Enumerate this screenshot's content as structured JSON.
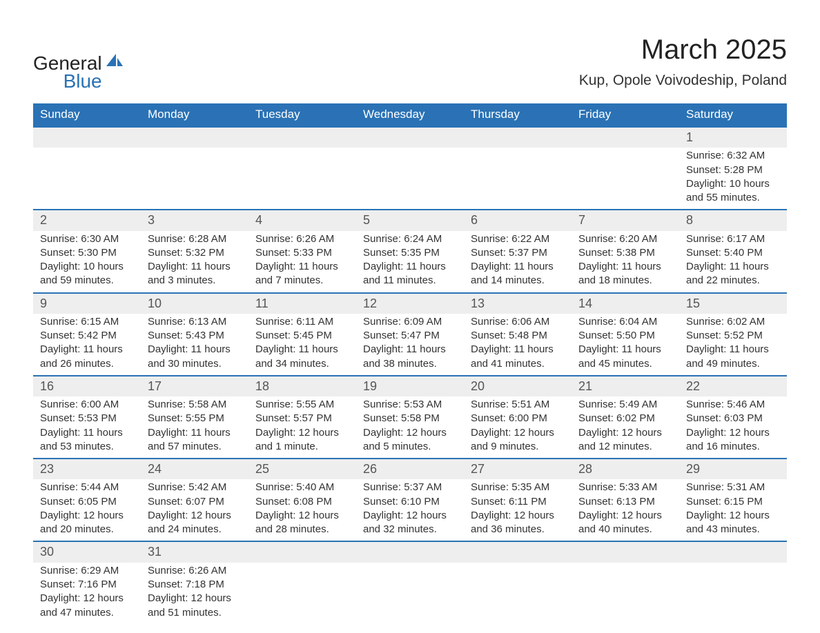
{
  "logo": {
    "text1": "General",
    "text2": "Blue"
  },
  "title": "March 2025",
  "location": "Kup, Opole Voivodeship, Poland",
  "colors": {
    "header_bg": "#2a72b5",
    "header_text": "#ffffff",
    "daynum_bg": "#eeeeee",
    "row_divider": "#2a72b5",
    "text": "#333333"
  },
  "weekdays": [
    "Sunday",
    "Monday",
    "Tuesday",
    "Wednesday",
    "Thursday",
    "Friday",
    "Saturday"
  ],
  "weeks": [
    [
      null,
      null,
      null,
      null,
      null,
      null,
      {
        "n": "1",
        "sr": "Sunrise: 6:32 AM",
        "ss": "Sunset: 5:28 PM",
        "d1": "Daylight: 10 hours",
        "d2": "and 55 minutes."
      }
    ],
    [
      {
        "n": "2",
        "sr": "Sunrise: 6:30 AM",
        "ss": "Sunset: 5:30 PM",
        "d1": "Daylight: 10 hours",
        "d2": "and 59 minutes."
      },
      {
        "n": "3",
        "sr": "Sunrise: 6:28 AM",
        "ss": "Sunset: 5:32 PM",
        "d1": "Daylight: 11 hours",
        "d2": "and 3 minutes."
      },
      {
        "n": "4",
        "sr": "Sunrise: 6:26 AM",
        "ss": "Sunset: 5:33 PM",
        "d1": "Daylight: 11 hours",
        "d2": "and 7 minutes."
      },
      {
        "n": "5",
        "sr": "Sunrise: 6:24 AM",
        "ss": "Sunset: 5:35 PM",
        "d1": "Daylight: 11 hours",
        "d2": "and 11 minutes."
      },
      {
        "n": "6",
        "sr": "Sunrise: 6:22 AM",
        "ss": "Sunset: 5:37 PM",
        "d1": "Daylight: 11 hours",
        "d2": "and 14 minutes."
      },
      {
        "n": "7",
        "sr": "Sunrise: 6:20 AM",
        "ss": "Sunset: 5:38 PM",
        "d1": "Daylight: 11 hours",
        "d2": "and 18 minutes."
      },
      {
        "n": "8",
        "sr": "Sunrise: 6:17 AM",
        "ss": "Sunset: 5:40 PM",
        "d1": "Daylight: 11 hours",
        "d2": "and 22 minutes."
      }
    ],
    [
      {
        "n": "9",
        "sr": "Sunrise: 6:15 AM",
        "ss": "Sunset: 5:42 PM",
        "d1": "Daylight: 11 hours",
        "d2": "and 26 minutes."
      },
      {
        "n": "10",
        "sr": "Sunrise: 6:13 AM",
        "ss": "Sunset: 5:43 PM",
        "d1": "Daylight: 11 hours",
        "d2": "and 30 minutes."
      },
      {
        "n": "11",
        "sr": "Sunrise: 6:11 AM",
        "ss": "Sunset: 5:45 PM",
        "d1": "Daylight: 11 hours",
        "d2": "and 34 minutes."
      },
      {
        "n": "12",
        "sr": "Sunrise: 6:09 AM",
        "ss": "Sunset: 5:47 PM",
        "d1": "Daylight: 11 hours",
        "d2": "and 38 minutes."
      },
      {
        "n": "13",
        "sr": "Sunrise: 6:06 AM",
        "ss": "Sunset: 5:48 PM",
        "d1": "Daylight: 11 hours",
        "d2": "and 41 minutes."
      },
      {
        "n": "14",
        "sr": "Sunrise: 6:04 AM",
        "ss": "Sunset: 5:50 PM",
        "d1": "Daylight: 11 hours",
        "d2": "and 45 minutes."
      },
      {
        "n": "15",
        "sr": "Sunrise: 6:02 AM",
        "ss": "Sunset: 5:52 PM",
        "d1": "Daylight: 11 hours",
        "d2": "and 49 minutes."
      }
    ],
    [
      {
        "n": "16",
        "sr": "Sunrise: 6:00 AM",
        "ss": "Sunset: 5:53 PM",
        "d1": "Daylight: 11 hours",
        "d2": "and 53 minutes."
      },
      {
        "n": "17",
        "sr": "Sunrise: 5:58 AM",
        "ss": "Sunset: 5:55 PM",
        "d1": "Daylight: 11 hours",
        "d2": "and 57 minutes."
      },
      {
        "n": "18",
        "sr": "Sunrise: 5:55 AM",
        "ss": "Sunset: 5:57 PM",
        "d1": "Daylight: 12 hours",
        "d2": "and 1 minute."
      },
      {
        "n": "19",
        "sr": "Sunrise: 5:53 AM",
        "ss": "Sunset: 5:58 PM",
        "d1": "Daylight: 12 hours",
        "d2": "and 5 minutes."
      },
      {
        "n": "20",
        "sr": "Sunrise: 5:51 AM",
        "ss": "Sunset: 6:00 PM",
        "d1": "Daylight: 12 hours",
        "d2": "and 9 minutes."
      },
      {
        "n": "21",
        "sr": "Sunrise: 5:49 AM",
        "ss": "Sunset: 6:02 PM",
        "d1": "Daylight: 12 hours",
        "d2": "and 12 minutes."
      },
      {
        "n": "22",
        "sr": "Sunrise: 5:46 AM",
        "ss": "Sunset: 6:03 PM",
        "d1": "Daylight: 12 hours",
        "d2": "and 16 minutes."
      }
    ],
    [
      {
        "n": "23",
        "sr": "Sunrise: 5:44 AM",
        "ss": "Sunset: 6:05 PM",
        "d1": "Daylight: 12 hours",
        "d2": "and 20 minutes."
      },
      {
        "n": "24",
        "sr": "Sunrise: 5:42 AM",
        "ss": "Sunset: 6:07 PM",
        "d1": "Daylight: 12 hours",
        "d2": "and 24 minutes."
      },
      {
        "n": "25",
        "sr": "Sunrise: 5:40 AM",
        "ss": "Sunset: 6:08 PM",
        "d1": "Daylight: 12 hours",
        "d2": "and 28 minutes."
      },
      {
        "n": "26",
        "sr": "Sunrise: 5:37 AM",
        "ss": "Sunset: 6:10 PM",
        "d1": "Daylight: 12 hours",
        "d2": "and 32 minutes."
      },
      {
        "n": "27",
        "sr": "Sunrise: 5:35 AM",
        "ss": "Sunset: 6:11 PM",
        "d1": "Daylight: 12 hours",
        "d2": "and 36 minutes."
      },
      {
        "n": "28",
        "sr": "Sunrise: 5:33 AM",
        "ss": "Sunset: 6:13 PM",
        "d1": "Daylight: 12 hours",
        "d2": "and 40 minutes."
      },
      {
        "n": "29",
        "sr": "Sunrise: 5:31 AM",
        "ss": "Sunset: 6:15 PM",
        "d1": "Daylight: 12 hours",
        "d2": "and 43 minutes."
      }
    ],
    [
      {
        "n": "30",
        "sr": "Sunrise: 6:29 AM",
        "ss": "Sunset: 7:16 PM",
        "d1": "Daylight: 12 hours",
        "d2": "and 47 minutes."
      },
      {
        "n": "31",
        "sr": "Sunrise: 6:26 AM",
        "ss": "Sunset: 7:18 PM",
        "d1": "Daylight: 12 hours",
        "d2": "and 51 minutes."
      },
      null,
      null,
      null,
      null,
      null
    ]
  ]
}
